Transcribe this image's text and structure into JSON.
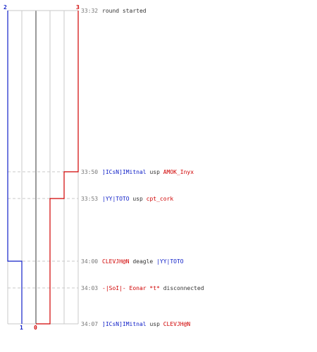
{
  "colors": {
    "team_blue": "#1020c8",
    "team_red": "#d00000",
    "grid": "#c8c8c8",
    "grid_strong": "#808080",
    "event_dash": "#c8c8c8",
    "time_text": "#777777",
    "neutral_text": "#333333"
  },
  "axis": {
    "top_left": "2",
    "top_right": "3",
    "bottom_blue": "1",
    "bottom_red": "0"
  },
  "events": [
    {
      "time": "33:32",
      "parts": [
        {
          "text": "round started",
          "color": "neutral"
        }
      ]
    },
    {
      "time": "33:50",
      "parts": [
        {
          "text": "]ICsN]IMitnal",
          "color": "blue"
        },
        {
          "text": " usp ",
          "color": "neutral"
        },
        {
          "text": "AMOK_Inyx",
          "color": "red"
        }
      ]
    },
    {
      "time": "33:53",
      "parts": [
        {
          "text": "|YY|TOTO",
          "color": "blue"
        },
        {
          "text": " usp ",
          "color": "neutral"
        },
        {
          "text": "cpt_cork",
          "color": "red"
        }
      ]
    },
    {
      "time": "34:00",
      "parts": [
        {
          "text": "CLEVJH@N",
          "color": "red"
        },
        {
          "text": " deagle ",
          "color": "neutral"
        },
        {
          "text": "|YY|TOTO",
          "color": "blue"
        }
      ]
    },
    {
      "time": "34:03",
      "parts": [
        {
          "text": "-|SoI|- Eonar *t*",
          "color": "red"
        },
        {
          "text": " disconnected",
          "color": "neutral"
        }
      ]
    },
    {
      "time": "34:07",
      "parts": [
        {
          "text": "]ICsN]IMitnal",
          "color": "blue"
        },
        {
          "text": " usp ",
          "color": "neutral"
        },
        {
          "text": "CLEVJH@N",
          "color": "red"
        }
      ]
    }
  ]
}
